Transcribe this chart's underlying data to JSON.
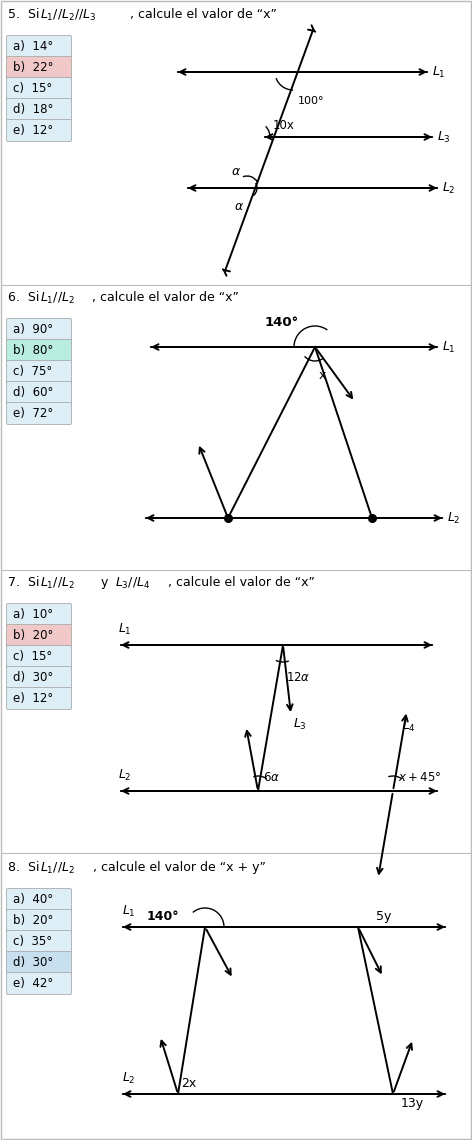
{
  "bg_color": "#ffffff",
  "problems": [
    {
      "number": "5.",
      "title_parts": [
        "5.  Si ",
        "L_1//L_2//L_3",
        ", calcule el valor de “x”"
      ],
      "options": [
        "a)  14°",
        "b)  22°",
        "c)  15°",
        "d)  18°",
        "e)  12°"
      ],
      "option_colors": [
        "#ddeef6",
        "#f0c8c8",
        "#ddeef6",
        "#ddeef6",
        "#ddeef6"
      ]
    },
    {
      "number": "6.",
      "title_parts": [
        "6.  Si ",
        "L_1//L_2",
        ", calcule el valor de “x”"
      ],
      "options": [
        "a)  90°",
        "b)  80°",
        "c)  75°",
        "d)  60°",
        "e)  72°"
      ],
      "option_colors": [
        "#ddeef6",
        "#b8ede0",
        "#ddeef6",
        "#ddeef6",
        "#ddeef6"
      ]
    },
    {
      "number": "7.",
      "title_parts": [
        "7.  Si ",
        "L_1//L_2",
        " y  ",
        "L_3//L_4",
        ", calcule el valor de “x”"
      ],
      "options": [
        "a)  10°",
        "b)  20°",
        "c)  15°",
        "d)  30°",
        "e)  12°"
      ],
      "option_colors": [
        "#ddeef6",
        "#f0c8c8",
        "#ddeef6",
        "#ddeef6",
        "#ddeef6"
      ]
    },
    {
      "number": "8.",
      "title_parts": [
        "8.  Si ",
        "L_1//L_2",
        ", calcule el valor de “x + y”"
      ],
      "options": [
        "a)  40°",
        "b)  20°",
        "c)  35°",
        "d)  30°",
        "e)  42°"
      ],
      "option_colors": [
        "#ddeef6",
        "#ddeef6",
        "#ddeef6",
        "#c8dff0",
        "#ddeef6"
      ]
    }
  ]
}
